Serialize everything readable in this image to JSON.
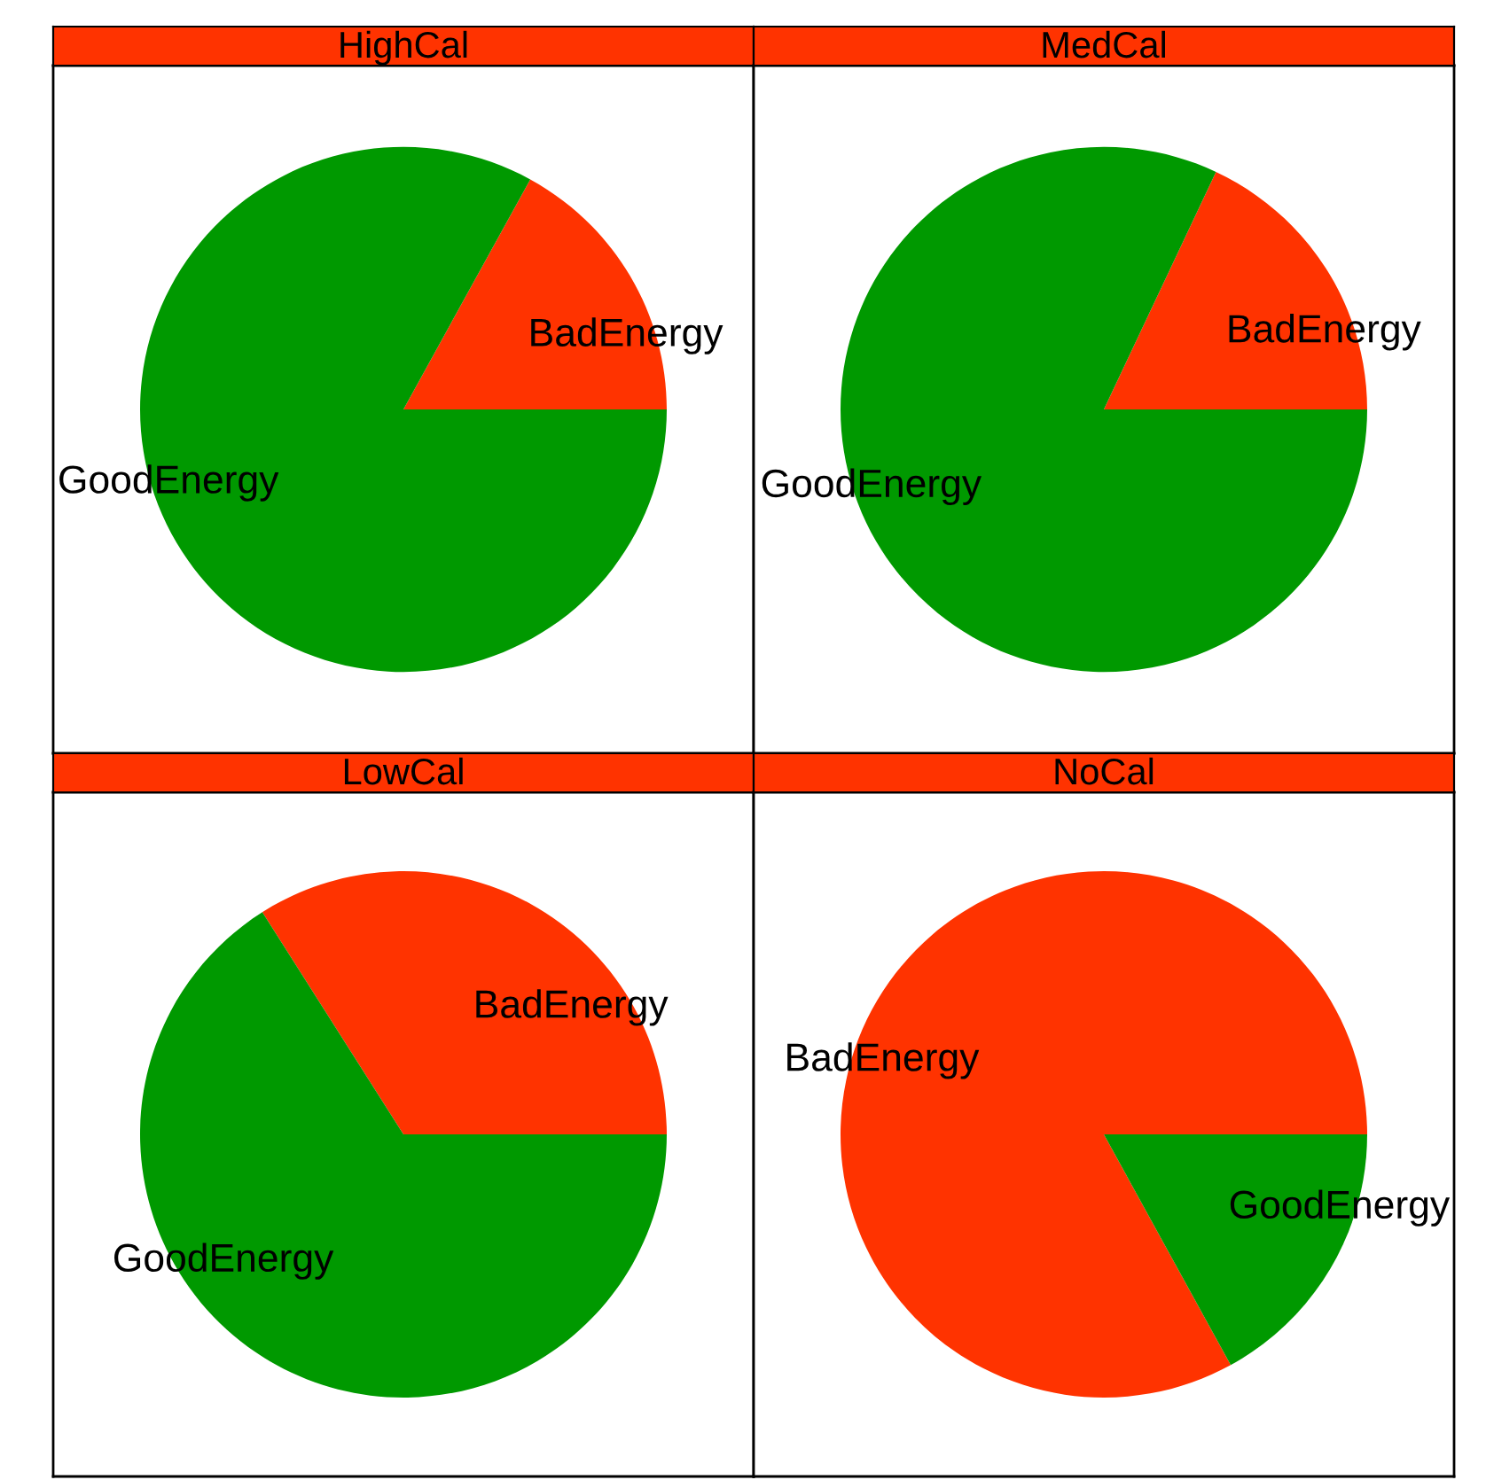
{
  "chart_data": [
    {
      "type": "pie",
      "title": "HighCal",
      "categories": [
        "BadEnergy",
        "GoodEnergy"
      ],
      "values": [
        17,
        83
      ],
      "colors": [
        "#ff3300",
        "#009900"
      ]
    },
    {
      "type": "pie",
      "title": "MedCal",
      "categories": [
        "BadEnergy",
        "GoodEnergy"
      ],
      "values": [
        18,
        82
      ],
      "colors": [
        "#ff3300",
        "#009900"
      ]
    },
    {
      "type": "pie",
      "title": "LowCal",
      "categories": [
        "BadEnergy",
        "GoodEnergy"
      ],
      "values": [
        34,
        66
      ],
      "colors": [
        "#ff3300",
        "#009900"
      ]
    },
    {
      "type": "pie",
      "title": "NoCal",
      "categories": [
        "BadEnergy",
        "GoodEnergy"
      ],
      "values": [
        83,
        17
      ],
      "colors": [
        "#ff3300",
        "#009900"
      ]
    }
  ]
}
